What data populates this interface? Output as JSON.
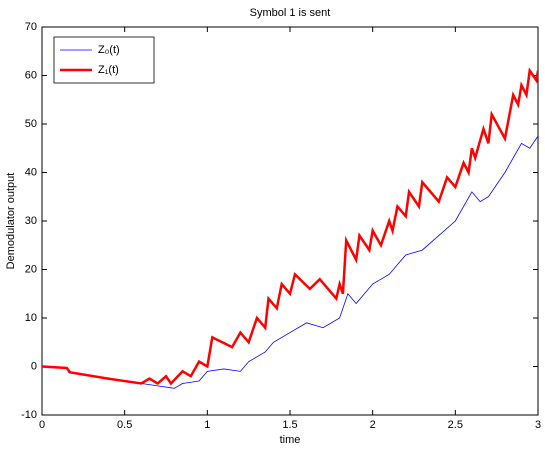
{
  "chart_data": {
    "type": "line",
    "title": "Symbol 1 is sent",
    "x_label": "time",
    "y_label": "Demodulator output",
    "xlim": [
      0,
      3
    ],
    "xticks": [
      0,
      0.5,
      1,
      1.5,
      2,
      2.5,
      3
    ],
    "ylim": [
      -10,
      70
    ],
    "yticks": [
      -10,
      0,
      10,
      20,
      30,
      40,
      50,
      60,
      70
    ],
    "grid": false,
    "legend": "top-left",
    "series": [
      {
        "name": "Z₀(t)",
        "color": "#0000ff",
        "width": 0.8,
        "x": [
          0,
          0.15,
          0.16,
          0.3,
          0.5,
          0.7,
          0.8,
          0.85,
          0.95,
          1.0,
          1.1,
          1.2,
          1.25,
          1.3,
          1.35,
          1.4,
          1.5,
          1.6,
          1.7,
          1.8,
          1.85,
          1.9,
          2.0,
          2.1,
          2.15,
          2.2,
          2.3,
          2.4,
          2.5,
          2.6,
          2.65,
          2.7,
          2.8,
          2.9,
          2.95,
          3.0
        ],
        "values": [
          0,
          -0.3,
          -1.2,
          -2,
          -3,
          -4,
          -4.5,
          -3.5,
          -3,
          -1,
          -0.5,
          -1,
          1,
          2,
          3,
          5,
          7,
          9,
          8,
          10,
          15,
          13,
          17,
          19,
          21,
          23,
          24,
          27,
          30,
          36,
          34,
          35,
          40,
          46,
          45,
          47.5
        ]
      },
      {
        "name": "Z₁(t)",
        "color": "#ff0000",
        "width": 2.5,
        "x": [
          0,
          0.15,
          0.17,
          0.4,
          0.5,
          0.6,
          0.65,
          0.7,
          0.75,
          0.78,
          0.85,
          0.9,
          0.95,
          1.0,
          1.03,
          1.15,
          1.2,
          1.25,
          1.3,
          1.35,
          1.37,
          1.42,
          1.45,
          1.5,
          1.53,
          1.62,
          1.68,
          1.78,
          1.8,
          1.82,
          1.84,
          1.9,
          1.92,
          1.98,
          2.0,
          2.05,
          2.1,
          2.12,
          2.15,
          2.2,
          2.22,
          2.28,
          2.3,
          2.4,
          2.45,
          2.5,
          2.55,
          2.58,
          2.6,
          2.62,
          2.67,
          2.7,
          2.72,
          2.8,
          2.85,
          2.88,
          2.9,
          2.93,
          2.95,
          2.99,
          3.0
        ],
        "values": [
          0,
          -0.3,
          -1.2,
          -2.5,
          -3,
          -3.5,
          -2.5,
          -3.5,
          -2,
          -3.5,
          -1,
          -2,
          1,
          0,
          6,
          4,
          7,
          5,
          10,
          8,
          14,
          12,
          17,
          15,
          19,
          16,
          18,
          14,
          17,
          15,
          26,
          22,
          27,
          24,
          28,
          25,
          30,
          28,
          33,
          31,
          36,
          33,
          38,
          34,
          39,
          37,
          42,
          40,
          45,
          43,
          49,
          46,
          52,
          47,
          56,
          54,
          58,
          56,
          61,
          59,
          61
        ]
      }
    ]
  }
}
